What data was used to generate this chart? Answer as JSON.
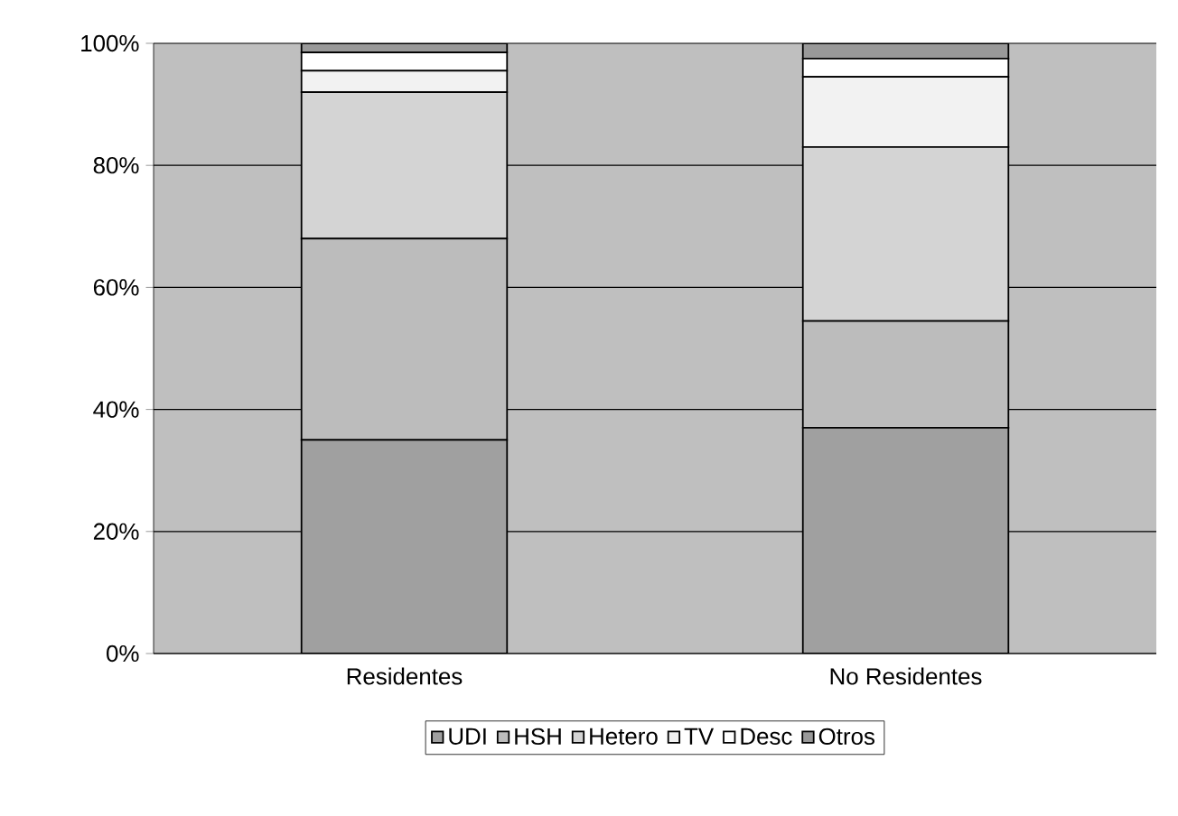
{
  "chart_data": {
    "type": "bar",
    "stacked": true,
    "categories": [
      "Residentes",
      "No Residentes"
    ],
    "series": [
      {
        "name": "UDI",
        "color": "#a0a0a0",
        "values": [
          35,
          37
        ]
      },
      {
        "name": "HSH",
        "color": "#bcbcbc",
        "values": [
          33,
          17.5
        ]
      },
      {
        "name": "Hetero",
        "color": "#d4d4d4",
        "values": [
          24,
          28.5
        ]
      },
      {
        "name": "TV",
        "color": "#f2f2f2",
        "values": [
          3.5,
          11.5
        ]
      },
      {
        "name": "Desc",
        "color": "#ffffff",
        "values": [
          3,
          3
        ]
      },
      {
        "name": "Otros",
        "color": "#999999",
        "values": [
          1.5,
          2.5
        ]
      }
    ],
    "ylim": [
      0,
      100
    ],
    "yticks": [
      {
        "value": 0,
        "label": "0%"
      },
      {
        "value": 20,
        "label": "20%"
      },
      {
        "value": 40,
        "label": "40%"
      },
      {
        "value": 60,
        "label": "60%"
      },
      {
        "value": 80,
        "label": "80%"
      },
      {
        "value": 100,
        "label": "100%"
      }
    ],
    "grid": "y",
    "legend": "bottom"
  }
}
